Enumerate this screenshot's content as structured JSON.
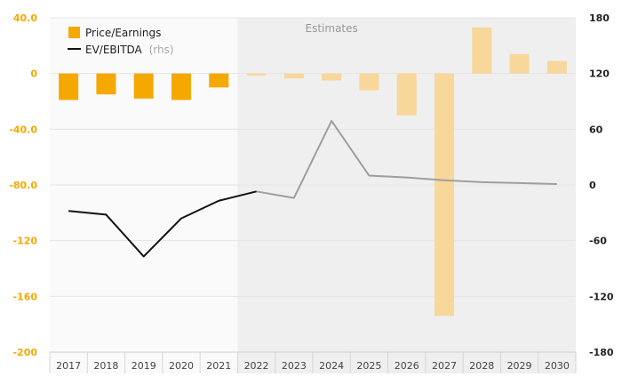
{
  "chart_data": {
    "type": "bar",
    "categories": [
      "2017",
      "2018",
      "2019",
      "2020",
      "2021",
      "2022",
      "2023",
      "2024",
      "2025",
      "2026",
      "2027",
      "2028",
      "2029",
      "2030"
    ],
    "series": [
      {
        "name": "Price/Earnings",
        "type": "bar",
        "axis": "left",
        "color": "#f5a800",
        "estimate_color": "#f7d79a",
        "values": [
          -19,
          -15,
          -18,
          -19,
          -10,
          -1.5,
          -3.5,
          -5,
          -12,
          -30,
          -174,
          33,
          14,
          9
        ]
      },
      {
        "name": "EV/EBITDA",
        "name_suffix": "(rhs)",
        "type": "line",
        "axis": "right",
        "color": "#111111",
        "estimate_color": "#9e9e9e",
        "values": [
          -28,
          -32,
          -77,
          -36,
          -17,
          -7,
          -14,
          69,
          10,
          8,
          5,
          3,
          2,
          1
        ]
      }
    ],
    "left_axis": {
      "ylim": [
        -200,
        40
      ],
      "ticks": [
        40,
        0,
        -40,
        -80,
        -120,
        -160,
        -200
      ],
      "tick_labels": [
        "40.0",
        "0",
        "-40.0",
        "-80.0",
        "-120",
        "-160",
        "-200"
      ]
    },
    "right_axis": {
      "ylim": [
        -180,
        180
      ],
      "ticks": [
        180,
        120,
        60,
        0,
        -60,
        -120,
        -180
      ],
      "tick_labels": [
        "180",
        "120",
        "60",
        "0",
        "-60",
        "-120",
        "-180"
      ]
    },
    "estimates": {
      "label": "Estimates",
      "start_category": "2022"
    },
    "legend_position": "top-left",
    "grid": true
  }
}
